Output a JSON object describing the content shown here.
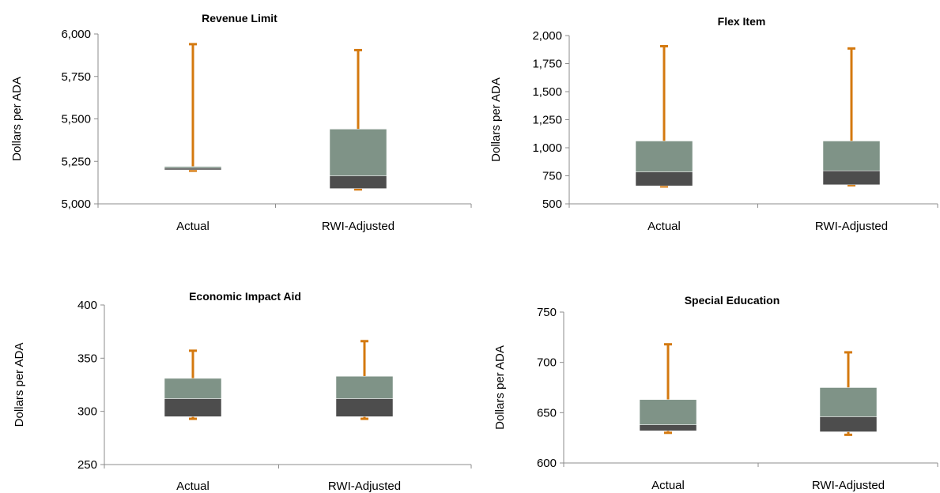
{
  "colors": {
    "whisker": "#D4790F",
    "upper_box": "#7F9387",
    "lower_box": "#4D4D4D",
    "axis": "#8C8C8C"
  },
  "chart_data": [
    {
      "type": "box",
      "title": "Revenue Limit",
      "ylabel": "Dollars per ADA",
      "categories": [
        "Actual",
        "RWI-Adjusted"
      ],
      "ylim": [
        5000,
        6000
      ],
      "yticks": [
        5000,
        5250,
        5500,
        5750,
        6000
      ],
      "ytick_labels": [
        "5,000",
        "5,250",
        "5,500",
        "5,750",
        "6,000"
      ],
      "boxes": [
        {
          "min": 5195,
          "q1": 5200,
          "median": 5210,
          "q3": 5220,
          "max": 5940
        },
        {
          "min": 5085,
          "q1": 5090,
          "median": 5165,
          "q3": 5440,
          "max": 5905
        }
      ]
    },
    {
      "type": "box",
      "title": "Flex Item",
      "ylabel": "Dollars per ADA",
      "categories": [
        "Actual",
        "RWI-Adjusted"
      ],
      "ylim": [
        500,
        2000
      ],
      "yticks": [
        500,
        750,
        1000,
        1250,
        1500,
        1750,
        2000
      ],
      "ytick_labels": [
        "500",
        "750",
        "1,000",
        "1,250",
        "1,500",
        "1,750",
        "2,000"
      ],
      "boxes": [
        {
          "min": 655,
          "q1": 660,
          "median": 785,
          "q3": 1060,
          "max": 1905
        },
        {
          "min": 665,
          "q1": 670,
          "median": 795,
          "q3": 1060,
          "max": 1885
        }
      ]
    },
    {
      "type": "box",
      "title": "Economic Impact Aid",
      "ylabel": "Dollars per ADA",
      "categories": [
        "Actual",
        "RWI-Adjusted"
      ],
      "ylim": [
        250,
        400
      ],
      "yticks": [
        250,
        300,
        350,
        400
      ],
      "ytick_labels": [
        "250",
        "300",
        "350",
        "400"
      ],
      "boxes": [
        {
          "min": 293,
          "q1": 295,
          "median": 312,
          "q3": 331,
          "max": 357
        },
        {
          "min": 293,
          "q1": 295,
          "median": 312,
          "q3": 333,
          "max": 366
        }
      ]
    },
    {
      "type": "box",
      "title": "Special Education",
      "ylabel": "Dollars per ADA",
      "categories": [
        "Actual",
        "RWI-Adjusted"
      ],
      "ylim": [
        600,
        750
      ],
      "yticks": [
        600,
        650,
        700,
        750
      ],
      "ytick_labels": [
        "600",
        "650",
        "700",
        "750"
      ],
      "boxes": [
        {
          "min": 630,
          "q1": 632,
          "median": 638,
          "q3": 663,
          "max": 718
        },
        {
          "min": 628,
          "q1": 631,
          "median": 646,
          "q3": 675,
          "max": 710
        }
      ]
    }
  ]
}
